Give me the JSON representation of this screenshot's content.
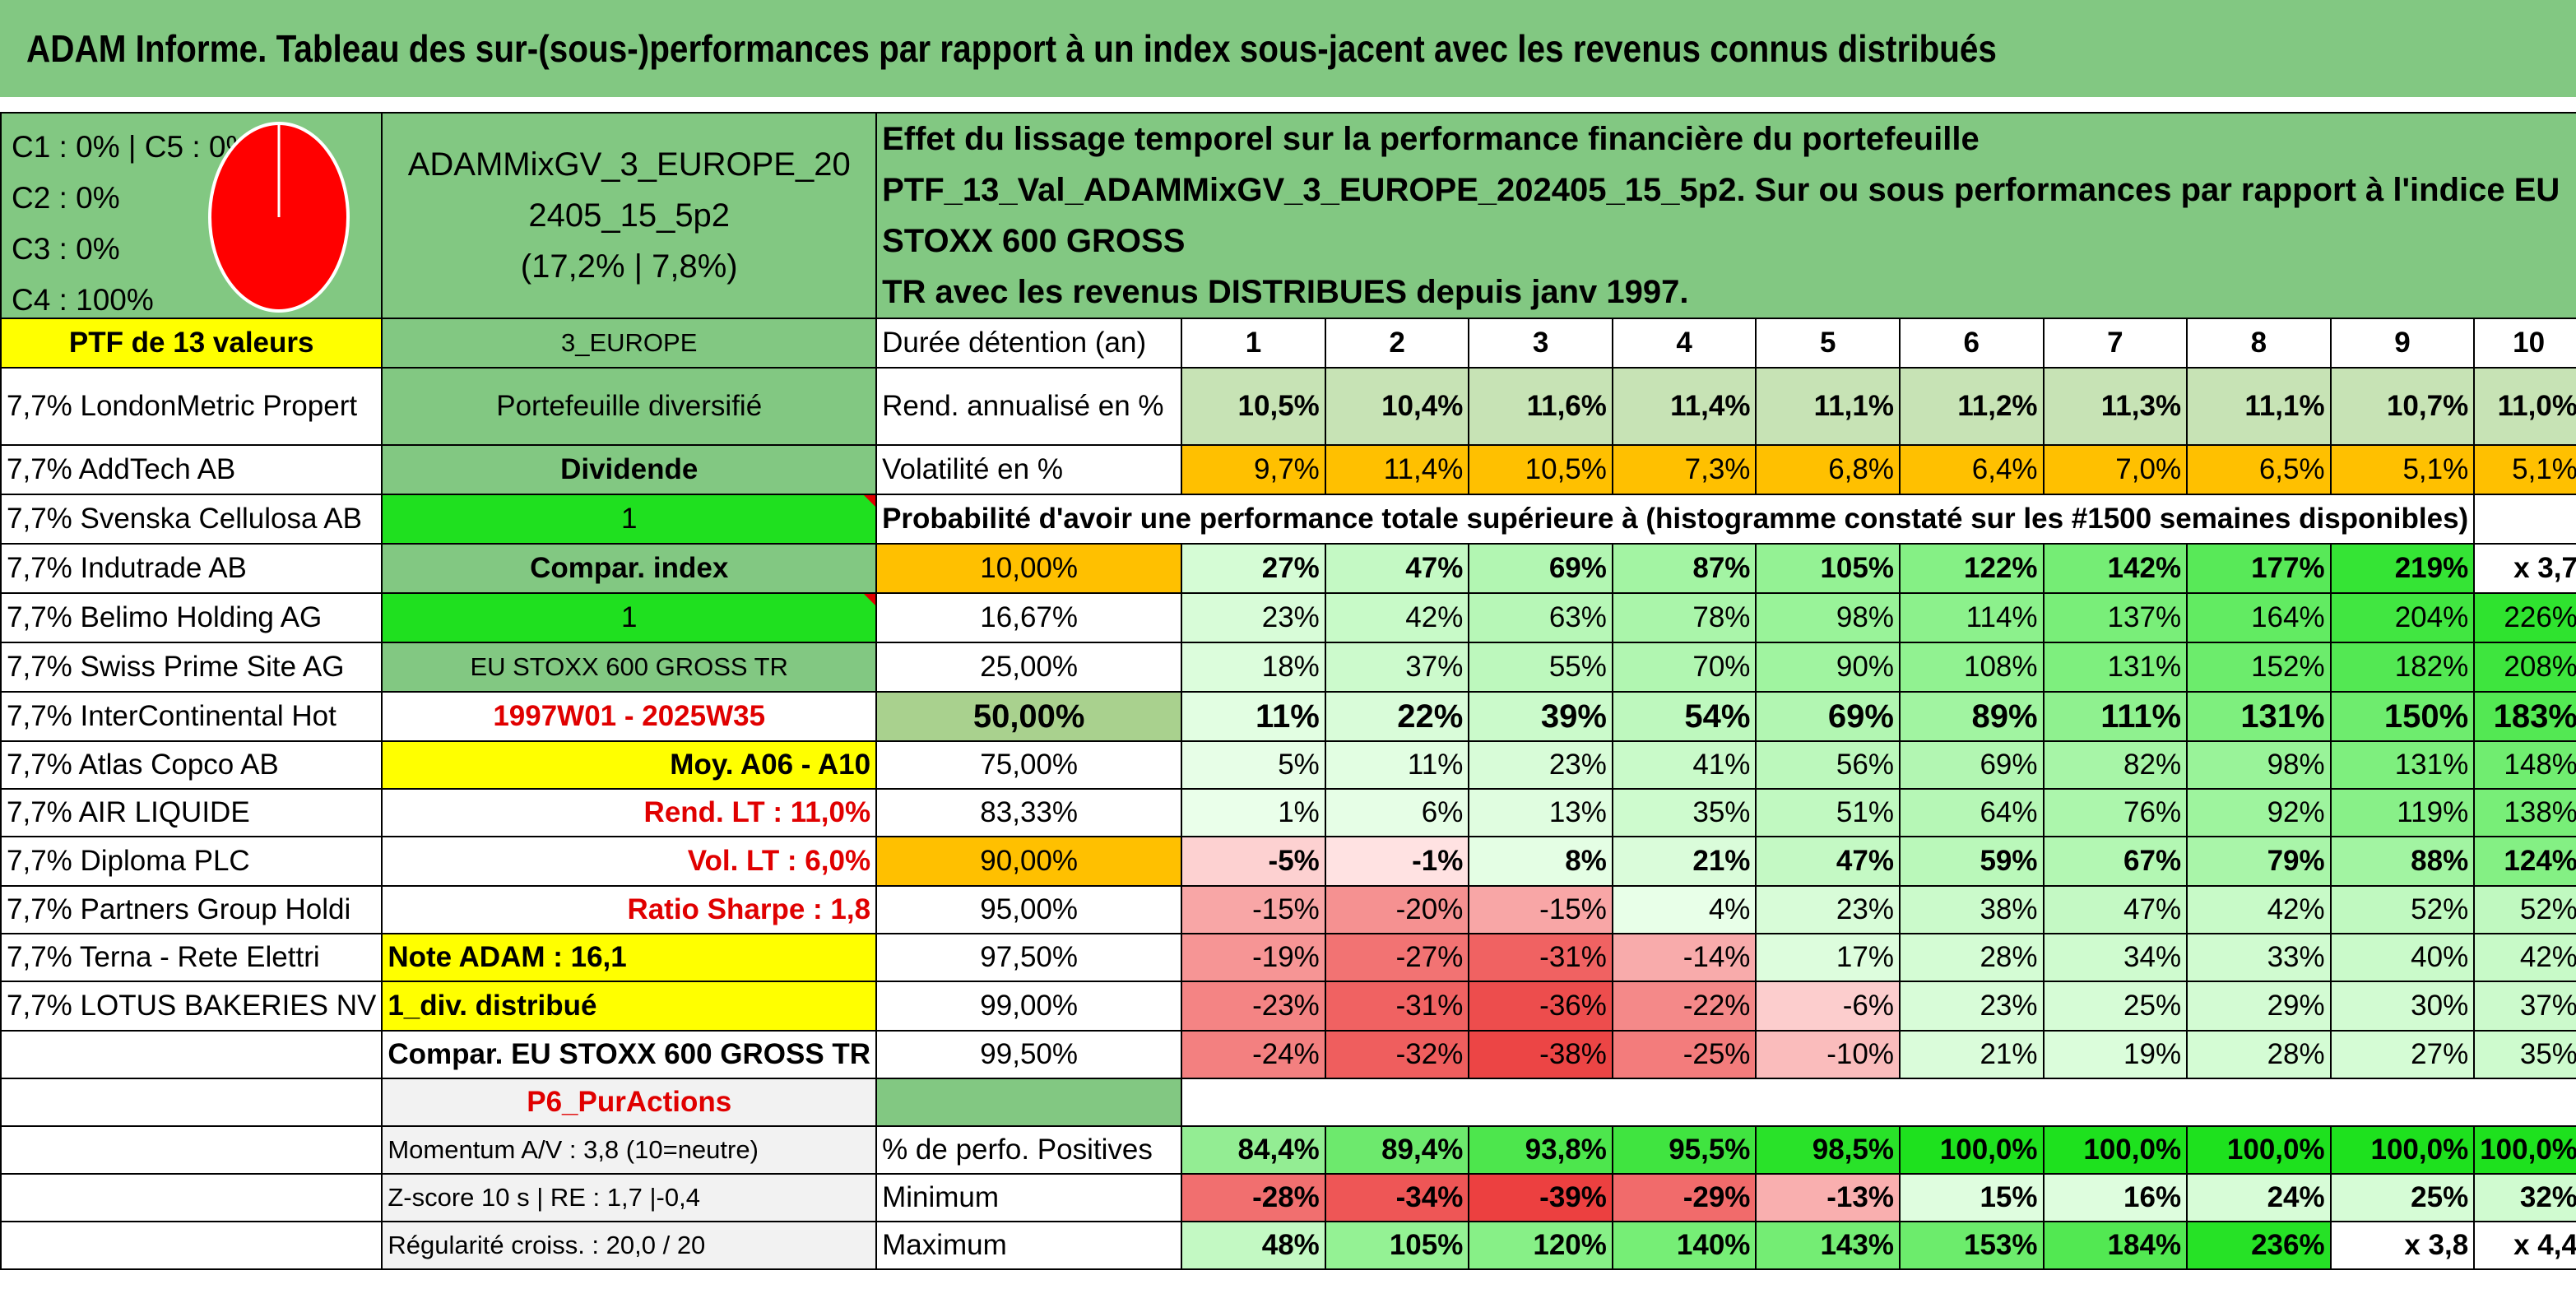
{
  "title": "ADAM Informe. Tableau des sur-(sous-)performances par rapport à un index sous-jacent avec les revenus connus distribués",
  "composition": {
    "lines": [
      "C1 : 0% | C5 : 0%",
      "C2 : 0%",
      "C3 : 0%",
      "C4 : 100%"
    ],
    "pie_color": "#ff0000"
  },
  "portfolio": {
    "name_line1": "ADAMMixGV_3_EUROPE_20",
    "name_line2": "2405_15_5p2",
    "perf": "(17,2% | 7,8%)"
  },
  "description": {
    "line1": "Effet du lissage temporel sur la performance financière du portefeuille",
    "line2": "PTF_13_Val_ADAMMixGV_3_EUROPE_202405_15_5p2. Sur ou sous performances par rapport à l'indice EU STOXX 600 GROSS",
    "line3": "TR avec les revenus DISTRIBUES depuis janv 1997."
  },
  "holdings_header": "PTF de 13 valeurs",
  "holdings": [
    "7,7% LondonMetric Propert",
    "7,7% AddTech AB",
    "7,7% Svenska Cellulosa AB",
    "7,7% Indutrade AB",
    "7,7% Belimo Holding AG",
    "7,7% Swiss Prime Site AG",
    "7,7% InterContinental Hot",
    "7,7% Atlas Copco AB",
    "7,7% AIR LIQUIDE",
    "7,7% Diploma PLC",
    "7,7% Partners Group Holdi",
    "7,7% Terna - Rete Elettri",
    "7,7% LOTUS BAKERIES NV"
  ],
  "info": {
    "region": "3_EUROPE",
    "type": "Portefeuille diversifié",
    "dividend_label": "Dividende",
    "dividend_value": "1",
    "compar_label": "Compar. index",
    "compar_value": "1",
    "index_name": "EU STOXX 600 GROSS TR",
    "period": "1997W01 - 2025W35",
    "moy": "Moy. A06 - A10",
    "rend_lt": "Rend. LT : 11,0%",
    "vol_lt": "Vol. LT : 6,0%",
    "sharpe": "Ratio Sharpe : 1,8",
    "note": "Note ADAM : 16,1",
    "div": "1_div. distribué",
    "compar_index": "Compar. EU STOXX 600 GROSS TR",
    "p6": "P6_PurActions",
    "momentum": "Momentum A/V : 3,8 (10=neutre)",
    "zscore": "Z-score 10 s | RE : 1,7 |-0,4",
    "regularite": "Régularité croiss. : 20,0 / 20"
  },
  "labels": {
    "duree": "Durée détention (an)",
    "rend": "Rend. annualisé en %",
    "vol": "Volatilité en %",
    "proba": "Probabilité d'avoir une performance totale supérieure à (histogramme constaté sur les #1500 semaines disponibles)",
    "pos": "% de perfo. Positives",
    "min": "Minimum",
    "max": "Maximum"
  },
  "years": [
    "1",
    "2",
    "3",
    "4",
    "5",
    "6",
    "7",
    "8",
    "9",
    "10"
  ],
  "rend": [
    "10,5%",
    "10,4%",
    "11,6%",
    "11,4%",
    "11,1%",
    "11,2%",
    "11,3%",
    "11,1%",
    "10,7%",
    "11,0%"
  ],
  "vol": [
    "9,7%",
    "11,4%",
    "10,5%",
    "7,3%",
    "6,8%",
    "6,4%",
    "7,0%",
    "6,5%",
    "5,1%",
    "5,1%"
  ],
  "quantiles": [
    {
      "label": "10,00%",
      "values": [
        "27%",
        "47%",
        "69%",
        "87%",
        "105%",
        "122%",
        "142%",
        "177%",
        "219%",
        "x 3,7"
      ]
    },
    {
      "label": "16,67%",
      "values": [
        "23%",
        "42%",
        "63%",
        "78%",
        "98%",
        "114%",
        "137%",
        "164%",
        "204%",
        "226%"
      ]
    },
    {
      "label": "25,00%",
      "values": [
        "18%",
        "37%",
        "55%",
        "70%",
        "90%",
        "108%",
        "131%",
        "152%",
        "182%",
        "208%"
      ]
    },
    {
      "label": "50,00%",
      "values": [
        "11%",
        "22%",
        "39%",
        "54%",
        "69%",
        "89%",
        "111%",
        "131%",
        "150%",
        "183%"
      ]
    },
    {
      "label": "75,00%",
      "values": [
        "5%",
        "11%",
        "23%",
        "41%",
        "56%",
        "69%",
        "82%",
        "98%",
        "131%",
        "148%"
      ]
    },
    {
      "label": "83,33%",
      "values": [
        "1%",
        "6%",
        "13%",
        "35%",
        "51%",
        "64%",
        "76%",
        "92%",
        "119%",
        "138%"
      ]
    },
    {
      "label": "90,00%",
      "values": [
        "-5%",
        "-1%",
        "8%",
        "21%",
        "47%",
        "59%",
        "67%",
        "79%",
        "88%",
        "124%"
      ]
    },
    {
      "label": "95,00%",
      "values": [
        "-15%",
        "-20%",
        "-15%",
        "4%",
        "23%",
        "38%",
        "47%",
        "42%",
        "52%",
        "52%"
      ]
    },
    {
      "label": "97,50%",
      "values": [
        "-19%",
        "-27%",
        "-31%",
        "-14%",
        "17%",
        "28%",
        "34%",
        "33%",
        "40%",
        "42%"
      ]
    },
    {
      "label": "99,00%",
      "values": [
        "-23%",
        "-31%",
        "-36%",
        "-22%",
        "-6%",
        "23%",
        "25%",
        "29%",
        "30%",
        "37%"
      ]
    },
    {
      "label": "99,50%",
      "values": [
        "-24%",
        "-32%",
        "-38%",
        "-25%",
        "-10%",
        "21%",
        "19%",
        "28%",
        "27%",
        "35%"
      ]
    }
  ],
  "positives": [
    "84,4%",
    "89,4%",
    "93,8%",
    "95,5%",
    "98,5%",
    "100,0%",
    "100,0%",
    "100,0%",
    "100,0%",
    "100,0%"
  ],
  "minimum": [
    "-28%",
    "-34%",
    "-39%",
    "-29%",
    "-13%",
    "15%",
    "16%",
    "24%",
    "25%",
    "32%"
  ],
  "maximum": [
    "48%",
    "105%",
    "120%",
    "140%",
    "143%",
    "153%",
    "184%",
    "236%",
    "x 3,8",
    "x 4,4"
  ],
  "colors": {
    "header_green": "#82c882",
    "bright_green": "#1fe01f",
    "yellow": "#ffff00",
    "orange": "#ffc000",
    "red_text": "#e00000"
  }
}
